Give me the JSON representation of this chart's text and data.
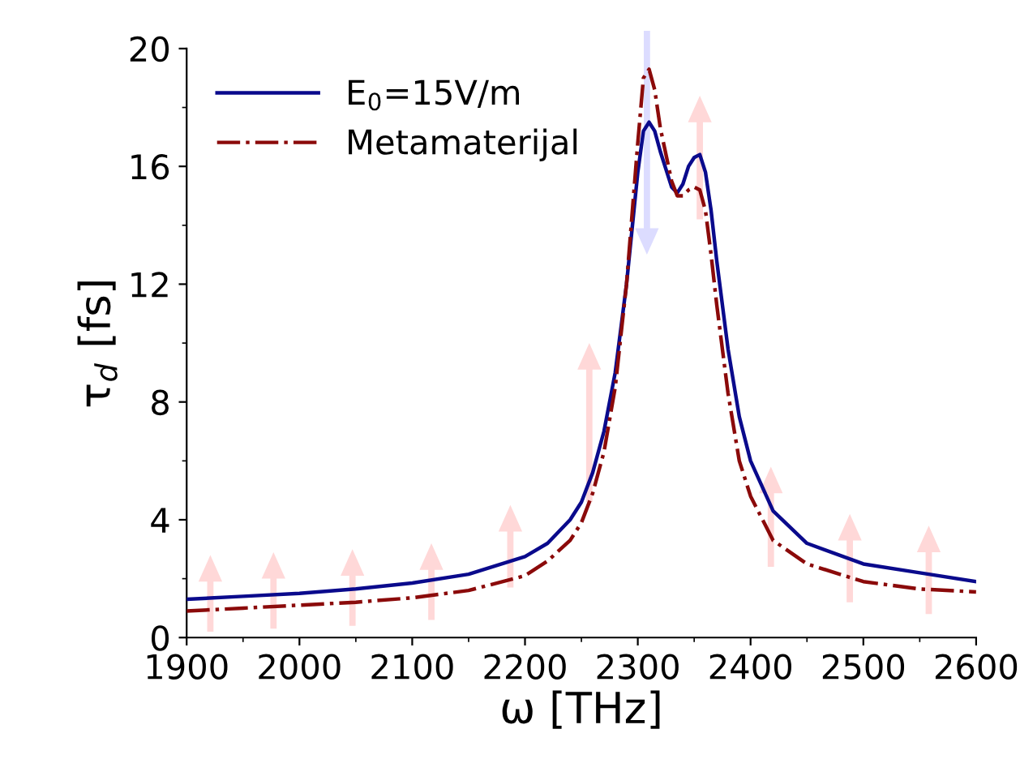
{
  "chart_data": {
    "type": "line",
    "xlabel": "ω [THz]",
    "ylabel": "τ$_{d}$ [fs]",
    "xlim": [
      1900,
      2600
    ],
    "xticks": [
      1900,
      2000,
      2100,
      2200,
      2300,
      2400,
      2500,
      2600
    ],
    "ylim": [
      0,
      20
    ],
    "yticks": [
      0,
      4,
      8,
      12,
      16,
      20
    ],
    "grid": false,
    "legend": "top left",
    "series": [
      {
        "name": "E$_{0}$=15V/m",
        "color": "#0a0a8c",
        "line_style": "solid",
        "x": [
          1900,
          1950,
          2000,
          2050,
          2100,
          2150,
          2200,
          2220,
          2240,
          2250,
          2260,
          2270,
          2280,
          2290,
          2300,
          2305,
          2310,
          2315,
          2320,
          2330,
          2335,
          2340,
          2345,
          2350,
          2355,
          2360,
          2365,
          2370,
          2380,
          2390,
          2400,
          2420,
          2450,
          2500,
          2550,
          2600
        ],
        "values": [
          1.3,
          1.4,
          1.5,
          1.65,
          1.85,
          2.15,
          2.75,
          3.2,
          4.0,
          4.6,
          5.6,
          7.0,
          9.0,
          12.0,
          15.8,
          17.2,
          17.5,
          17.2,
          16.5,
          15.3,
          15.1,
          15.4,
          16.0,
          16.3,
          16.4,
          15.8,
          14.5,
          12.8,
          9.8,
          7.5,
          6.0,
          4.3,
          3.2,
          2.5,
          2.2,
          1.9
        ]
      },
      {
        "name": "Metamaterijal",
        "color": "#8b0a0a",
        "line_style": "dashdot",
        "x": [
          1900,
          1950,
          2000,
          2050,
          2100,
          2150,
          2200,
          2220,
          2240,
          2250,
          2260,
          2270,
          2280,
          2290,
          2300,
          2305,
          2310,
          2315,
          2320,
          2330,
          2335,
          2340,
          2345,
          2350,
          2355,
          2360,
          2365,
          2370,
          2380,
          2390,
          2400,
          2420,
          2450,
          2500,
          2550,
          2600
        ],
        "values": [
          0.9,
          1.0,
          1.1,
          1.2,
          1.35,
          1.6,
          2.1,
          2.6,
          3.3,
          3.9,
          4.9,
          6.3,
          8.5,
          12.0,
          16.8,
          19.0,
          19.3,
          18.6,
          17.3,
          15.5,
          15.0,
          15.0,
          15.2,
          15.3,
          15.2,
          14.5,
          13.0,
          11.3,
          8.3,
          6.0,
          4.8,
          3.3,
          2.5,
          1.9,
          1.65,
          1.55
        ]
      }
    ]
  }
}
